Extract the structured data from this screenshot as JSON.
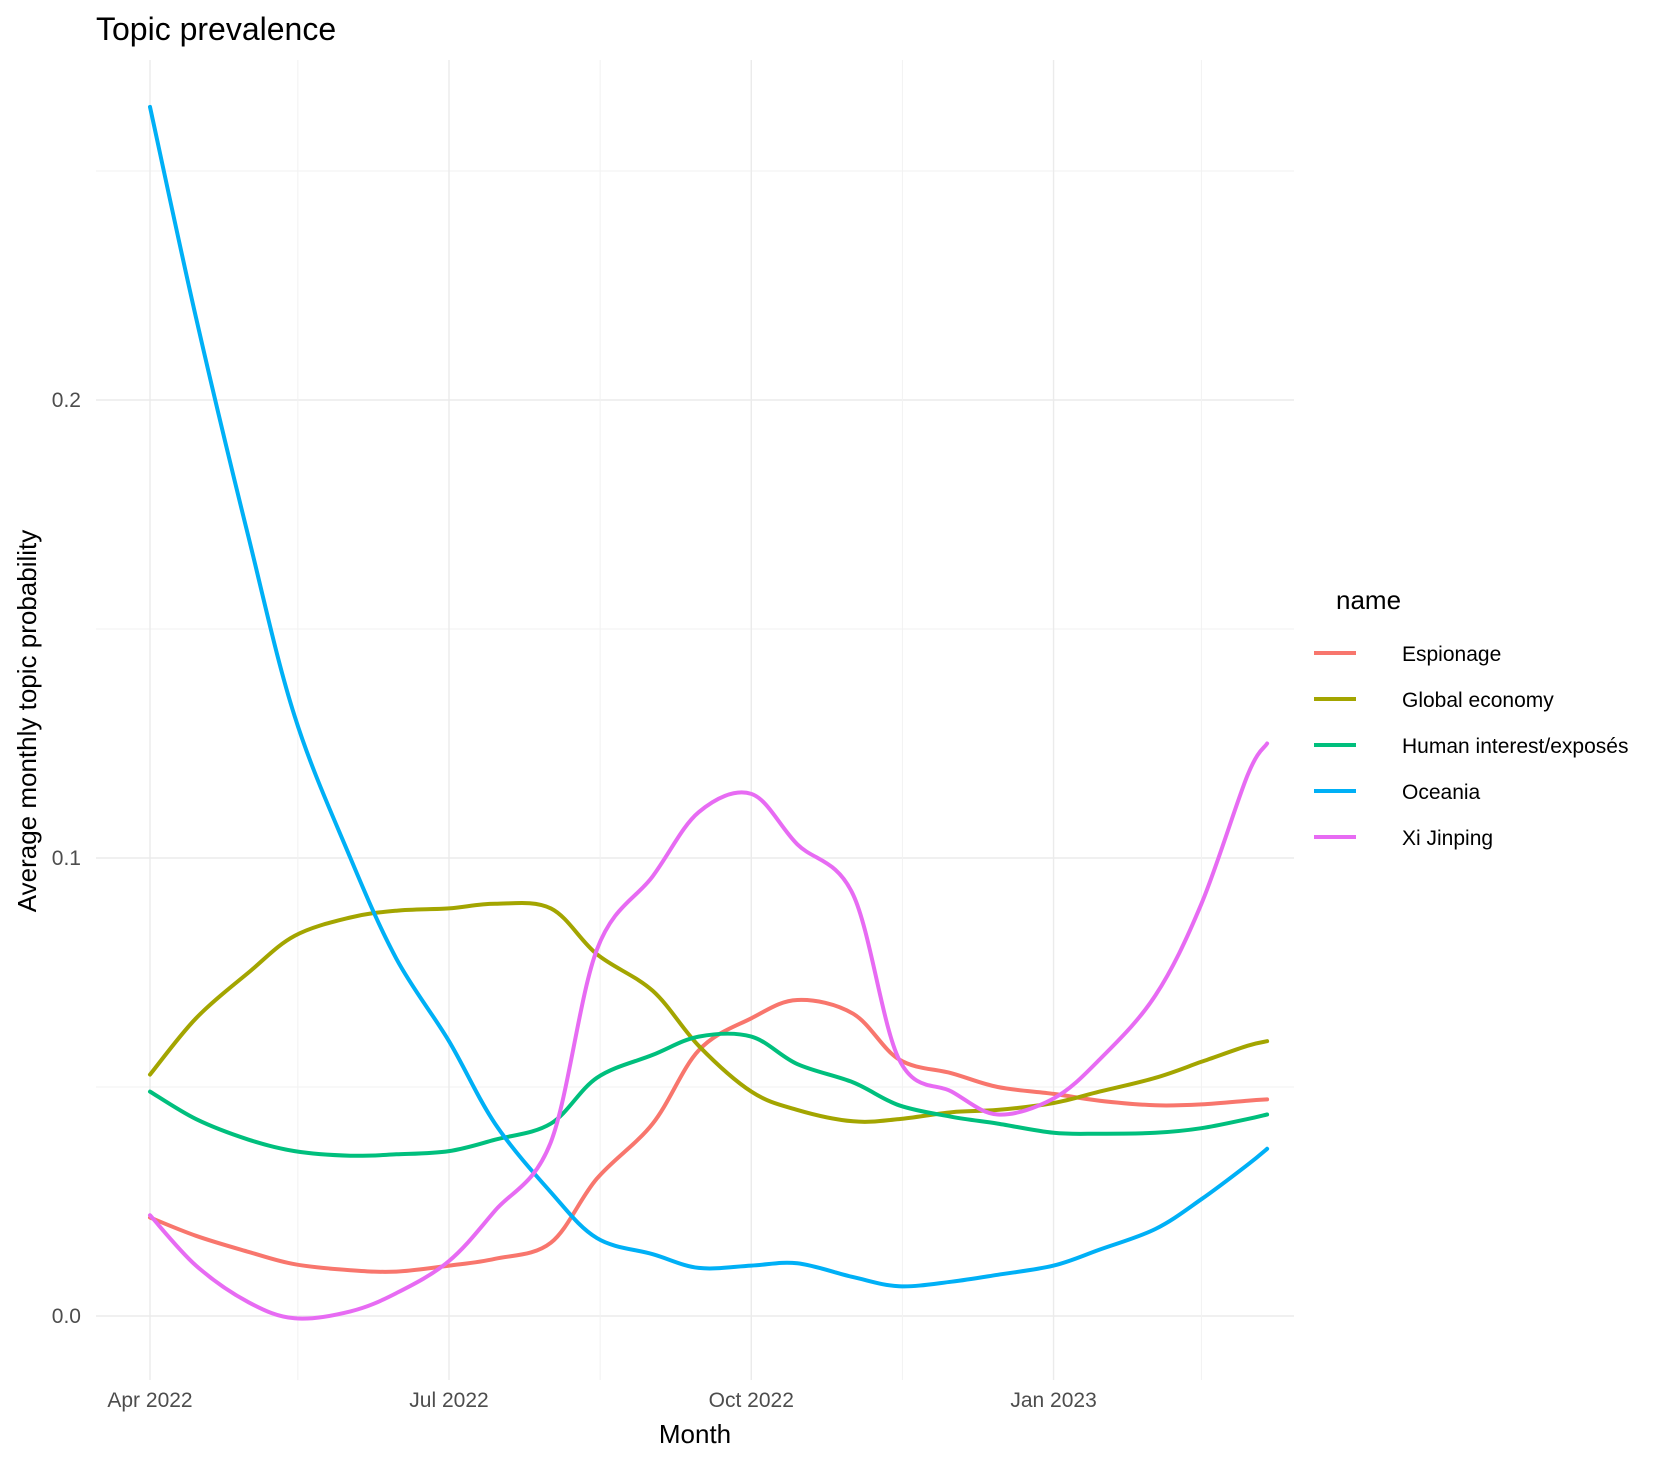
{
  "chart_data": {
    "type": "line",
    "title": "Topic prevalence",
    "xlabel": "Month",
    "ylabel": "Average monthly topic probability",
    "x_ticks": [
      "Apr 2022",
      "Jul 2022",
      "Oct 2022",
      "Jan 2023"
    ],
    "y_ticks": [
      "0.0",
      "0.1",
      "0.2"
    ],
    "ylim": [
      -0.012,
      0.274
    ],
    "grid": true,
    "legend": {
      "title": "name",
      "position": "right"
    },
    "x": [
      "2022-04-01",
      "2022-04-15",
      "2022-05-01",
      "2022-05-15",
      "2022-06-01",
      "2022-06-15",
      "2022-07-01",
      "2022-07-15",
      "2022-08-01",
      "2022-08-15",
      "2022-09-01",
      "2022-09-15",
      "2022-10-01",
      "2022-10-15",
      "2022-11-01",
      "2022-11-15",
      "2022-12-01",
      "2022-12-15",
      "2023-01-01",
      "2023-01-15",
      "2023-02-01",
      "2023-02-15",
      "2023-03-01",
      "2023-03-07"
    ],
    "series": [
      {
        "name": "Espionage",
        "color": "#F8766D",
        "values": [
          0.0215,
          0.0175,
          0.014,
          0.0113,
          0.01,
          0.0097,
          0.011,
          0.0125,
          0.016,
          0.03,
          0.042,
          0.058,
          0.065,
          0.069,
          0.066,
          0.056,
          0.053,
          0.05,
          0.0485,
          0.047,
          0.046,
          0.0462,
          0.047,
          0.0473
        ]
      },
      {
        "name": "Global economy",
        "color": "#A3A500",
        "values": [
          0.0527,
          0.065,
          0.075,
          0.083,
          0.087,
          0.0885,
          0.089,
          0.09,
          0.089,
          0.079,
          0.071,
          0.059,
          0.049,
          0.045,
          0.0425,
          0.043,
          0.0445,
          0.045,
          0.0465,
          0.049,
          0.052,
          0.0555,
          0.059,
          0.06
        ]
      },
      {
        "name": "Human interest/exposés",
        "color": "#00BF7D",
        "values": [
          0.049,
          0.043,
          0.0385,
          0.036,
          0.035,
          0.0353,
          0.036,
          0.0385,
          0.042,
          0.052,
          0.057,
          0.061,
          0.061,
          0.055,
          0.051,
          0.046,
          0.0435,
          0.042,
          0.04,
          0.0398,
          0.04,
          0.041,
          0.043,
          0.044
        ]
      },
      {
        "name": "Oceania",
        "color": "#00B0F6",
        "values": [
          0.264,
          0.218,
          0.17,
          0.131,
          0.1,
          0.078,
          0.06,
          0.042,
          0.027,
          0.017,
          0.0135,
          0.0105,
          0.011,
          0.0115,
          0.0085,
          0.0065,
          0.0075,
          0.009,
          0.011,
          0.0145,
          0.019,
          0.0255,
          0.033,
          0.0365
        ]
      },
      {
        "name": "Xi Jinping",
        "color": "#E76BF3",
        "values": [
          0.022,
          0.011,
          0.003,
          -0.0005,
          0.001,
          0.005,
          0.012,
          0.023,
          0.038,
          0.08,
          0.096,
          0.11,
          0.114,
          0.103,
          0.092,
          0.056,
          0.049,
          0.044,
          0.0475,
          0.056,
          0.07,
          0.09,
          0.118,
          0.125
        ]
      }
    ]
  }
}
